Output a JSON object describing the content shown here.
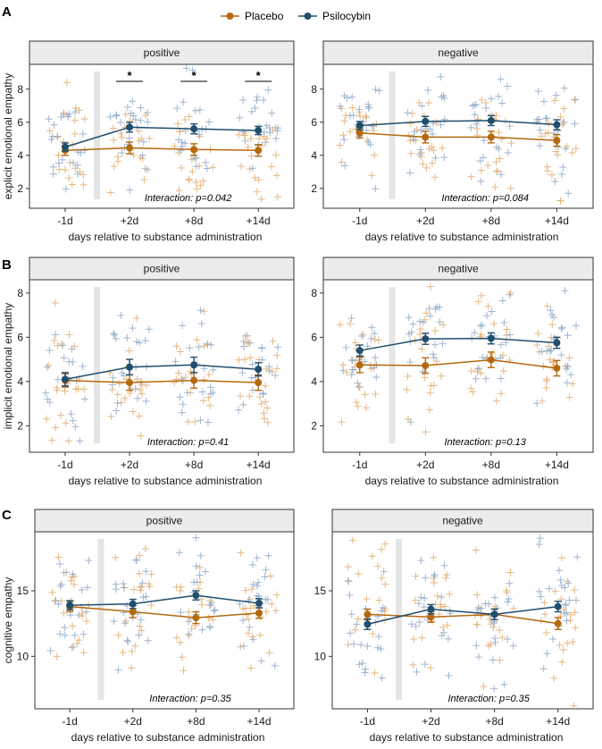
{
  "legend": {
    "placebo_label": "Placebo",
    "psilocybin_label": "Psilocybin"
  },
  "colors": {
    "placebo": "#b5690f",
    "psilocybin": "#1f4e6e",
    "placebo_jitter": "#e3ab6c",
    "psilocybin_jitter": "#8ea9c8",
    "strip_bg": "#ececec",
    "admin_band": "#e5e5e5"
  },
  "chart_data": [
    {
      "type": "line",
      "panel_letter": "A",
      "facet": "positive",
      "ylabel": "explicit emotional empathy",
      "xlabel": "days relative to substance administration",
      "categories": [
        "-1d",
        "+2d",
        "+8d",
        "+14d"
      ],
      "ylim": [
        0.8,
        9.5
      ],
      "yticks": [
        2,
        4,
        6,
        8
      ],
      "series": [
        {
          "name": "Placebo",
          "values": [
            4.3,
            4.45,
            4.35,
            4.3
          ],
          "error": [
            0.3,
            0.35,
            0.35,
            0.35
          ]
        },
        {
          "name": "Psilocybin",
          "values": [
            4.5,
            5.7,
            5.6,
            5.5
          ],
          "error": [
            0.25,
            0.3,
            0.3,
            0.25
          ]
        }
      ],
      "significance": [
        "",
        "*",
        "*",
        "*"
      ],
      "annotation": "Interaction: p=0.042"
    },
    {
      "type": "line",
      "panel_letter": "",
      "facet": "negative",
      "ylabel": "",
      "xlabel": "days relative to substance administration",
      "categories": [
        "-1d",
        "+2d",
        "+8d",
        "+14d"
      ],
      "ylim": [
        0.8,
        9.5
      ],
      "yticks": [
        2,
        4,
        6,
        8
      ],
      "series": [
        {
          "name": "Placebo",
          "values": [
            5.35,
            5.1,
            5.1,
            4.9
          ],
          "error": [
            0.3,
            0.35,
            0.35,
            0.35
          ]
        },
        {
          "name": "Psilocybin",
          "values": [
            5.8,
            6.05,
            6.1,
            5.85
          ],
          "error": [
            0.25,
            0.3,
            0.3,
            0.3
          ]
        }
      ],
      "significance": [
        "",
        "",
        "",
        ""
      ],
      "annotation": "Interaction: p=0.084"
    },
    {
      "type": "line",
      "panel_letter": "B",
      "facet": "positive",
      "ylabel": "implicit emotional empathy",
      "xlabel": "days relative to substance administration",
      "categories": [
        "-1d",
        "+2d",
        "+8d",
        "+14d"
      ],
      "ylim": [
        0.8,
        8.6
      ],
      "yticks": [
        2,
        4,
        6,
        8
      ],
      "series": [
        {
          "name": "Placebo",
          "values": [
            4.05,
            3.95,
            4.05,
            3.95
          ],
          "error": [
            0.3,
            0.35,
            0.35,
            0.35
          ]
        },
        {
          "name": "Psilocybin",
          "values": [
            4.1,
            4.65,
            4.75,
            4.55
          ],
          "error": [
            0.3,
            0.35,
            0.35,
            0.3
          ]
        }
      ],
      "significance": [
        "",
        "",
        "",
        ""
      ],
      "annotation": "Interaction: p=0.41"
    },
    {
      "type": "line",
      "panel_letter": "",
      "facet": "negative",
      "ylabel": "",
      "xlabel": "days relative to substance administration",
      "categories": [
        "-1d",
        "+2d",
        "+8d",
        "+14d"
      ],
      "ylim": [
        0.8,
        8.6
      ],
      "yticks": [
        2,
        4,
        6,
        8
      ],
      "series": [
        {
          "name": "Placebo",
          "values": [
            4.75,
            4.72,
            4.98,
            4.6
          ],
          "error": [
            0.35,
            0.35,
            0.35,
            0.35
          ]
        },
        {
          "name": "Psilocybin",
          "values": [
            5.4,
            5.93,
            5.95,
            5.75
          ],
          "error": [
            0.25,
            0.25,
            0.25,
            0.25
          ]
        }
      ],
      "significance": [
        "",
        "",
        "",
        ""
      ],
      "annotation": "Interaction: p=0.13"
    },
    {
      "type": "line",
      "panel_letter": "C",
      "facet": "positive",
      "ylabel": "cognitive empathy",
      "xlabel": "days relative to substance administration",
      "categories": [
        "-1d",
        "+2d",
        "+8d",
        "+14d"
      ],
      "ylim": [
        6.0,
        19.5
      ],
      "yticks": [
        10,
        15
      ],
      "series": [
        {
          "name": "Placebo",
          "values": [
            13.8,
            13.4,
            12.95,
            13.3
          ],
          "error": [
            0.4,
            0.45,
            0.45,
            0.4
          ]
        },
        {
          "name": "Psilocybin",
          "values": [
            13.9,
            14.0,
            14.65,
            14.05
          ],
          "error": [
            0.35,
            0.35,
            0.35,
            0.35
          ]
        }
      ],
      "significance": [
        "",
        "",
        "",
        ""
      ],
      "annotation": "Interaction: p=0.35"
    },
    {
      "type": "line",
      "panel_letter": "",
      "facet": "negative",
      "ylabel": "",
      "xlabel": "days relative to substance administration",
      "categories": [
        "-1d",
        "+2d",
        "+8d",
        "+14d"
      ],
      "ylim": [
        6.0,
        19.5
      ],
      "yticks": [
        10,
        15
      ],
      "series": [
        {
          "name": "Placebo",
          "values": [
            13.2,
            13.0,
            13.2,
            12.5
          ],
          "error": [
            0.4,
            0.4,
            0.4,
            0.45
          ]
        },
        {
          "name": "Psilocybin",
          "values": [
            12.45,
            13.6,
            13.2,
            13.8
          ],
          "error": [
            0.4,
            0.35,
            0.4,
            0.4
          ]
        }
      ],
      "significance": [
        "",
        "",
        "",
        ""
      ],
      "annotation": "Interaction: p=0.35"
    }
  ]
}
